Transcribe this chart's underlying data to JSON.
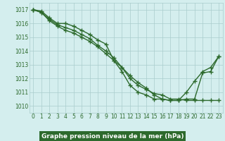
{
  "title": "Graphe pression niveau de la mer (hPa)",
  "x_hours": [
    0,
    1,
    2,
    3,
    4,
    5,
    6,
    7,
    8,
    9,
    10,
    11,
    12,
    13,
    14,
    15,
    16,
    17,
    18,
    19,
    20,
    21,
    22,
    23
  ],
  "line1": [
    1017.0,
    1016.9,
    1016.4,
    1016.0,
    1016.0,
    1015.8,
    1015.5,
    1015.2,
    1014.8,
    1014.5,
    1013.3,
    1012.5,
    1011.5,
    1011.0,
    1010.8,
    1010.5,
    1010.5,
    1010.4,
    1010.4,
    1011.0,
    1011.8,
    1012.5,
    1012.8,
    1013.6
  ],
  "line2": [
    1017.0,
    1016.8,
    1016.3,
    1015.9,
    1015.7,
    1015.5,
    1015.2,
    1014.9,
    1014.4,
    1014.0,
    1013.5,
    1012.8,
    1012.0,
    1011.5,
    1011.2,
    1010.9,
    1010.8,
    1010.5,
    1010.5,
    1010.4,
    1010.4,
    1010.4,
    1010.4,
    1010.4
  ],
  "line3": [
    1017.0,
    1016.8,
    1016.2,
    1015.8,
    1015.5,
    1015.3,
    1015.0,
    1014.7,
    1014.3,
    1013.8,
    1013.3,
    1012.8,
    1012.2,
    1011.7,
    1011.3,
    1010.8,
    1010.5,
    1010.4,
    1010.4,
    1010.5,
    1010.5,
    1012.4,
    1012.5,
    1013.6
  ],
  "ylim": [
    1009.5,
    1017.5
  ],
  "yticks": [
    1010,
    1011,
    1012,
    1013,
    1014,
    1015,
    1016,
    1017
  ],
  "line_color": "#2d6a2d",
  "bg_color": "#d4eeee",
  "grid_color": "#aacccc",
  "title_bg": "#2d6a2d",
  "title_color": "#ffffff",
  "marker": "+",
  "marker_size": 4,
  "line_width": 1.0
}
